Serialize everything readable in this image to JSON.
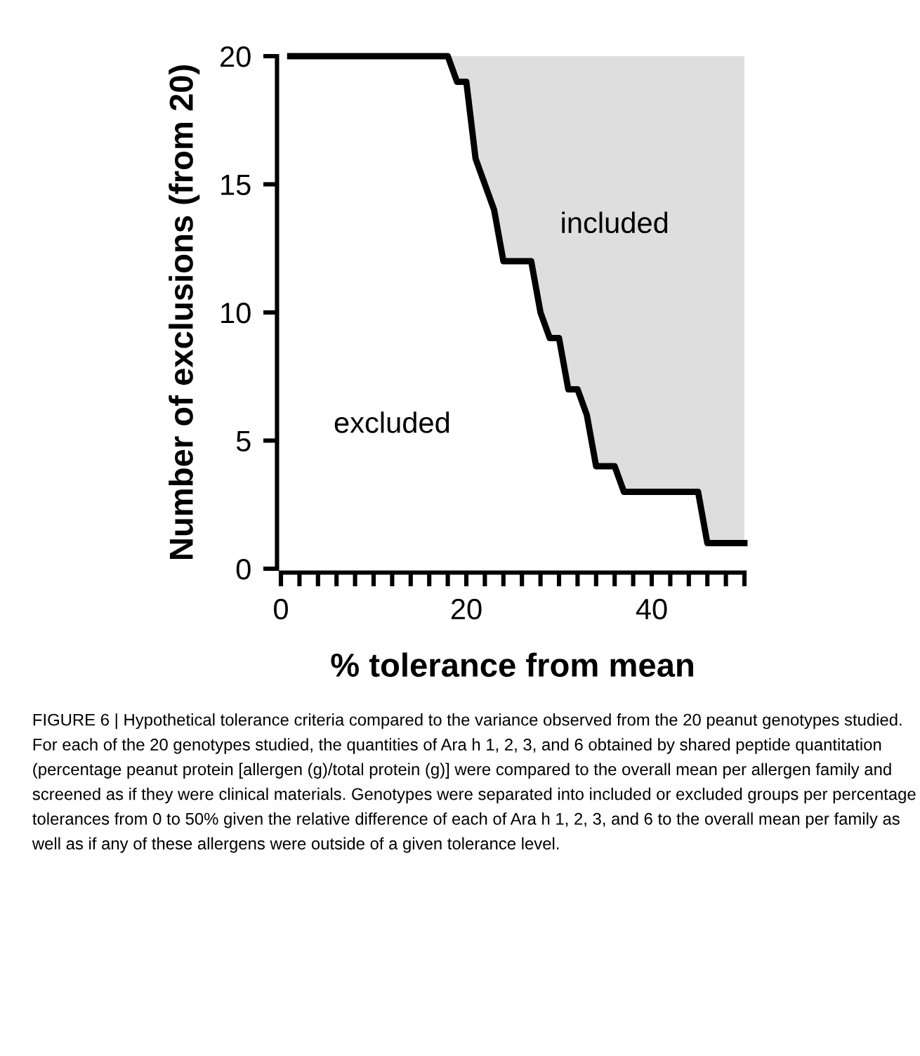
{
  "chart_data": {
    "type": "line",
    "xlabel": "% tolerance from mean",
    "ylabel": "Number of exclusions (from 20)",
    "x": [
      1,
      18,
      19,
      20,
      21,
      23,
      24,
      27,
      28,
      29,
      30,
      31,
      32,
      33,
      34,
      36,
      37,
      45,
      46,
      50
    ],
    "series": [
      {
        "color": "#000000",
        "values": [
          20,
          20,
          19,
          19,
          16,
          14,
          12,
          12,
          10,
          9,
          9,
          7,
          7,
          6,
          4,
          4,
          3,
          3,
          1,
          1
        ],
        "lower": [
          20,
          20,
          19,
          19,
          16,
          14,
          12,
          12,
          10,
          9,
          9,
          7,
          7,
          6,
          4,
          4,
          3,
          3,
          1,
          1
        ],
        "upper": [
          20,
          20,
          20,
          20,
          20,
          20,
          20,
          20,
          20,
          20,
          20,
          20,
          20,
          20,
          20,
          20,
          20,
          20,
          20,
          20
        ]
      }
    ],
    "xlim": [
      0,
      50
    ],
    "ylim": [
      0,
      20
    ],
    "xticks": [
      0,
      {
        "value": 2,
        "label": null
      },
      {
        "value": 4,
        "label": null
      },
      {
        "value": 6,
        "label": null
      },
      {
        "value": 8,
        "label": null
      },
      {
        "value": 10,
        "label": null
      },
      {
        "value": 12,
        "label": null
      },
      {
        "value": 14,
        "label": null
      },
      {
        "value": 16,
        "label": null
      },
      {
        "value": 18,
        "label": null
      },
      20,
      {
        "value": 22,
        "label": null
      },
      {
        "value": 24,
        "label": null
      },
      {
        "value": 26,
        "label": null
      },
      {
        "value": 28,
        "label": null
      },
      {
        "value": 30,
        "label": null
      },
      {
        "value": 32,
        "label": null
      },
      {
        "value": 34,
        "label": null
      },
      {
        "value": 36,
        "label": null
      },
      {
        "value": 38,
        "label": null
      },
      40,
      {
        "value": 42,
        "label": null
      },
      {
        "value": 44,
        "label": null
      },
      {
        "value": 46,
        "label": null
      },
      {
        "value": 48,
        "label": null
      },
      {
        "value": 50,
        "label": null
      }
    ],
    "yticks": [
      0,
      5,
      10,
      15,
      20
    ],
    "grid": false,
    "legend": false,
    "marker": "none",
    "line_style": "solid",
    "annotations": [
      "included",
      "excluded",
      "FIGURE 6 | Hypothetical tolerance criteria compared to the variance observed from the 20 peanut genotypes studied. For each of the 20 genotypes studied, the quantities of Ara h 1, 2, 3, and 6 obtained by shared peptide quantitation (percentage peanut protein [allergen (g)/total protein (g)] were compared to the overall mean per allergen family and screened as if they were clinical materials. Genotypes were separated into included or excluded groups per percentage tolerances from 0 to 50% given the relative difference of each of Ara h 1, 2, 3, and 6 to the overall mean per family as well as if any of these allergens were outside of a given tolerance level."
    ]
  }
}
